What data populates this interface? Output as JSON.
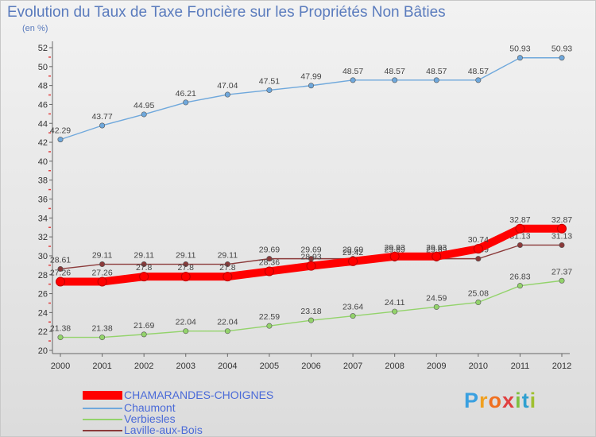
{
  "header": {
    "title": "Evolution du Taux de Taxe Foncière sur les Propriétés Non Bâties",
    "unit": "(en %)"
  },
  "logo": {
    "text": "Proxiti",
    "letters": [
      "P",
      "r",
      "o",
      "x",
      "i",
      "t",
      "i"
    ]
  },
  "chart_data": {
    "type": "line",
    "title": "Evolution du Taux de Taxe Foncière sur les Propriétés Non Bâties",
    "ylabel": "(en %)",
    "xlabel": "",
    "x": [
      "2000",
      "2001",
      "2002",
      "2003",
      "2004",
      "2005",
      "2006",
      "2007",
      "2008",
      "2009",
      "2010",
      "2011",
      "2012"
    ],
    "yticks": [
      "20",
      "22",
      "24",
      "26",
      "28",
      "30",
      "32",
      "34",
      "36",
      "38",
      "40",
      "42",
      "44",
      "46",
      "48",
      "50",
      "52"
    ],
    "ylim": [
      20,
      52
    ],
    "grid": false,
    "legend_position": "bottom-left",
    "series": [
      {
        "name": "CHAMARANDES-CHOIGNES",
        "color": "#ff0000",
        "values": [
          27.26,
          27.26,
          27.8,
          27.8,
          27.8,
          28.36,
          28.93,
          29.42,
          29.93,
          29.93,
          30.74,
          32.87,
          32.87
        ],
        "labels": [
          "27.26",
          "27.26",
          "27.8",
          "27.8",
          "27.8",
          "28.36",
          "28.93",
          "29.42",
          "29.93",
          "29.93",
          "30.74",
          "32.87",
          "32.87"
        ]
      },
      {
        "name": "Chaumont",
        "color": "#6fa8dc",
        "values": [
          42.29,
          43.77,
          44.95,
          46.21,
          47.04,
          47.51,
          47.99,
          48.57,
          48.57,
          48.57,
          48.57,
          50.93,
          50.93
        ],
        "labels": [
          "42.29",
          "43.77",
          "44.95",
          "46.21",
          "47.04",
          "47.51",
          "47.99",
          "48.57",
          "48.57",
          "48.57",
          "48.57",
          "50.93",
          "50.93"
        ]
      },
      {
        "name": "Verbiesles",
        "color": "#93d36b",
        "values": [
          21.38,
          21.38,
          21.69,
          22.04,
          22.04,
          22.59,
          23.18,
          23.64,
          24.11,
          24.59,
          25.08,
          26.83,
          27.37
        ],
        "labels": [
          "21.38",
          "21.38",
          "21.69",
          "22.04",
          "22.04",
          "22.59",
          "23.18",
          "23.64",
          "24.11",
          "24.59",
          "25.08",
          "26.83",
          "27.37"
        ]
      },
      {
        "name": "Laville-aux-Bois",
        "color": "#8b3a3a",
        "values": [
          28.61,
          29.11,
          29.11,
          29.11,
          29.11,
          29.69,
          29.69,
          29.69,
          29.69,
          29.69,
          29.69,
          31.13,
          31.13
        ],
        "labels": [
          "28.61",
          "29.11",
          "29.11",
          "29.11",
          "29.11",
          "29.69",
          "29.69",
          "29.69",
          "29.69",
          "29.69",
          "29.69",
          "31.13",
          "31.13"
        ]
      }
    ]
  }
}
